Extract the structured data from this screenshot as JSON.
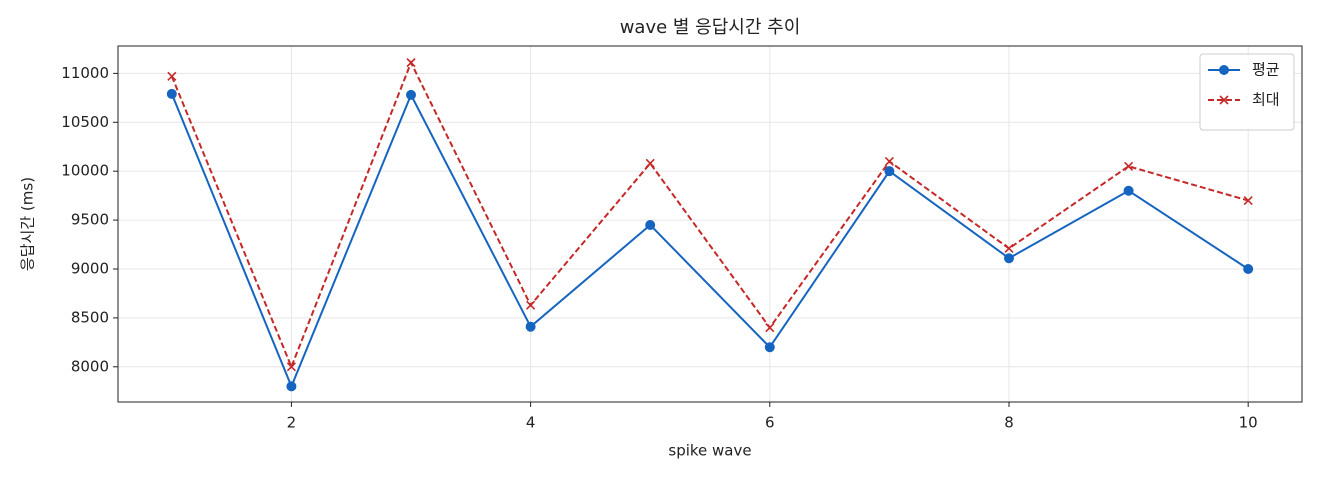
{
  "chart_data": {
    "type": "line",
    "title": "wave 별 응답시간 추이",
    "xlabel": "spike wave",
    "ylabel": "응답시간 (ms)",
    "x": [
      1,
      2,
      3,
      4,
      5,
      6,
      7,
      8,
      9,
      10
    ],
    "series": [
      {
        "name": "평균",
        "color": "#1565c0",
        "marker": "o",
        "linestyle": "solid",
        "values": [
          10790,
          7800,
          10780,
          8410,
          9450,
          8200,
          10000,
          9110,
          9800,
          9000
        ]
      },
      {
        "name": "최대",
        "color": "#c62828",
        "marker": "x",
        "linestyle": "dashed",
        "values": [
          10970,
          8000,
          11110,
          8630,
          10080,
          8400,
          10100,
          9210,
          10050,
          9700
        ]
      }
    ],
    "xlim": [
      0.55,
      10.45
    ],
    "xticks": [
      2,
      4,
      6,
      8,
      10
    ],
    "ylim": [
      7640,
      11280
    ],
    "yticks": [
      8000,
      8500,
      9000,
      9500,
      10000,
      10500,
      11000
    ],
    "grid": true,
    "legend": "upper right"
  }
}
